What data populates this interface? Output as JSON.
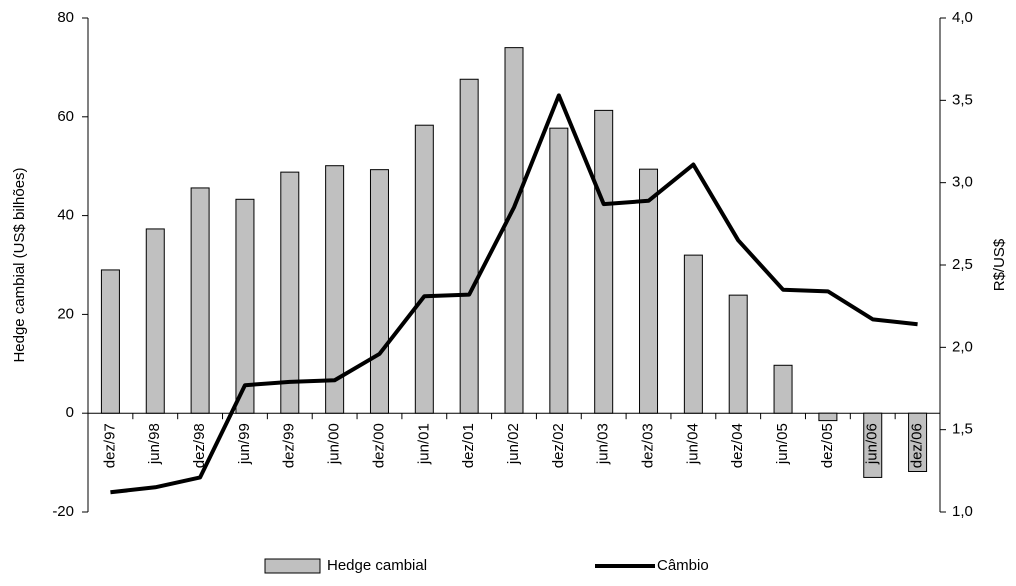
{
  "chart_data": {
    "type": "bar",
    "y_label": "Hedge cambial (US$ bilhões)",
    "y2_label": "R$/US$",
    "categories": [
      "dez/97",
      "jun/98",
      "dez/98",
      "jun/99",
      "dez/99",
      "jun/00",
      "dez/00",
      "jun/01",
      "dez/01",
      "jun/02",
      "dez/02",
      "jun/03",
      "dez/03",
      "jun/04",
      "dez/04",
      "jun/05",
      "dez/05",
      "jun/06",
      "dez/06"
    ],
    "series": [
      {
        "name": "Hedge cambial",
        "type": "bar",
        "color": "#c0c0c0",
        "values": [
          29,
          37.3,
          45.6,
          43.3,
          48.8,
          50.1,
          49.3,
          58.3,
          67.6,
          74,
          57.7,
          61.3,
          49.4,
          32,
          23.9,
          9.7,
          -1.5,
          -13,
          -11.8
        ]
      },
      {
        "name": "Câmbio",
        "type": "line",
        "axis": "y2",
        "color": "#000000",
        "values": [
          1.12,
          1.15,
          1.21,
          1.77,
          1.79,
          1.8,
          1.96,
          2.31,
          2.32,
          2.85,
          3.53,
          2.87,
          2.89,
          3.11,
          2.65,
          2.35,
          2.34,
          2.17,
          2.14
        ]
      }
    ],
    "ylim": [
      -20,
      80
    ],
    "yticks": [
      -20,
      0,
      20,
      40,
      60,
      80
    ],
    "y2lim": [
      1,
      4
    ],
    "y2ticks": [
      {
        "value": 1,
        "label": "1,0"
      },
      {
        "value": 1.5,
        "label": "1,5"
      },
      {
        "value": 2,
        "label": "2,0"
      },
      {
        "value": 2.5,
        "label": "2,5"
      },
      {
        "value": 3,
        "label": "3,0"
      },
      {
        "value": 3.5,
        "label": "3,5"
      },
      {
        "value": 4,
        "label": "4,0"
      }
    ],
    "grid": false,
    "legend": "bottom"
  }
}
